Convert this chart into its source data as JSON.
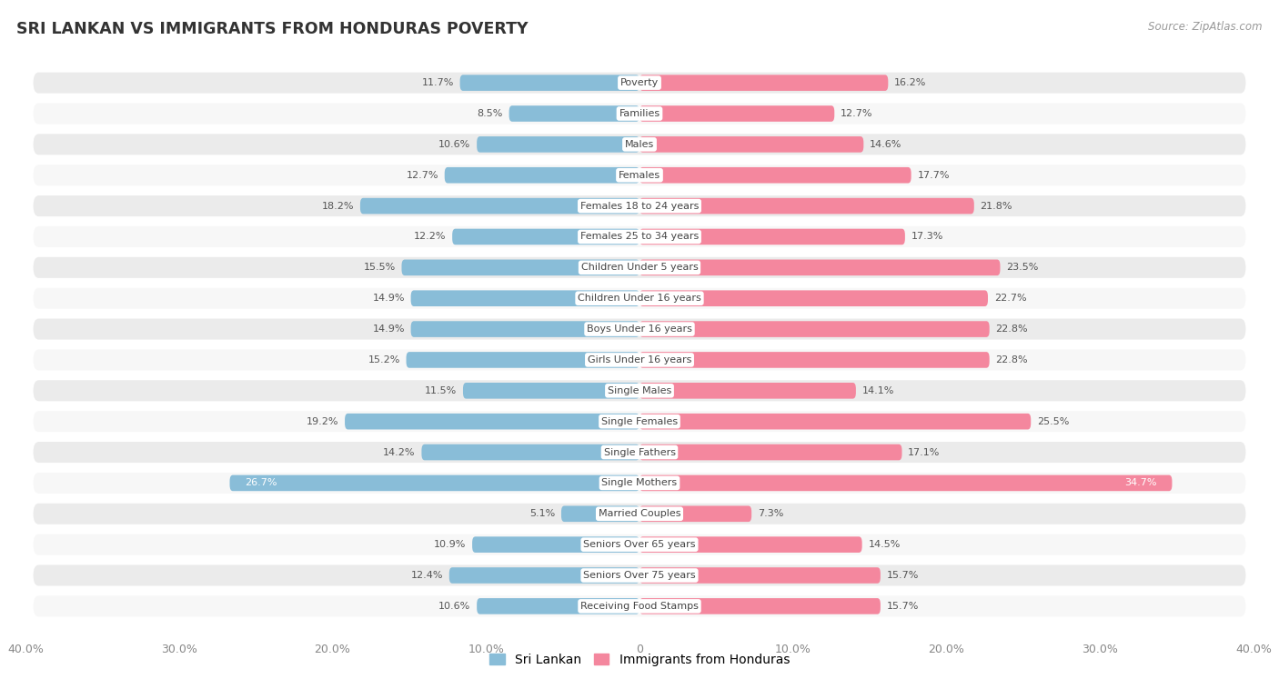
{
  "title": "SRI LANKAN VS IMMIGRANTS FROM HONDURAS POVERTY",
  "source": "Source: ZipAtlas.com",
  "categories": [
    "Poverty",
    "Families",
    "Males",
    "Females",
    "Females 18 to 24 years",
    "Females 25 to 34 years",
    "Children Under 5 years",
    "Children Under 16 years",
    "Boys Under 16 years",
    "Girls Under 16 years",
    "Single Males",
    "Single Females",
    "Single Fathers",
    "Single Mothers",
    "Married Couples",
    "Seniors Over 65 years",
    "Seniors Over 75 years",
    "Receiving Food Stamps"
  ],
  "sri_lankan": [
    11.7,
    8.5,
    10.6,
    12.7,
    18.2,
    12.2,
    15.5,
    14.9,
    14.9,
    15.2,
    11.5,
    19.2,
    14.2,
    26.7,
    5.1,
    10.9,
    12.4,
    10.6
  ],
  "honduras": [
    16.2,
    12.7,
    14.6,
    17.7,
    21.8,
    17.3,
    23.5,
    22.7,
    22.8,
    22.8,
    14.1,
    25.5,
    17.1,
    34.7,
    7.3,
    14.5,
    15.7,
    15.7
  ],
  "sri_lankan_color": "#89bdd8",
  "honduras_color": "#f4879e",
  "row_bg_even": "#ebebeb",
  "row_bg_odd": "#f7f7f7",
  "background_color": "#ffffff",
  "label_box_color": "#ffffff",
  "label_text_color": "#444444",
  "value_text_color": "#555555",
  "xlim": 40.0,
  "legend_sri_lankan": "Sri Lankan",
  "legend_honduras": "Immigrants from Honduras"
}
